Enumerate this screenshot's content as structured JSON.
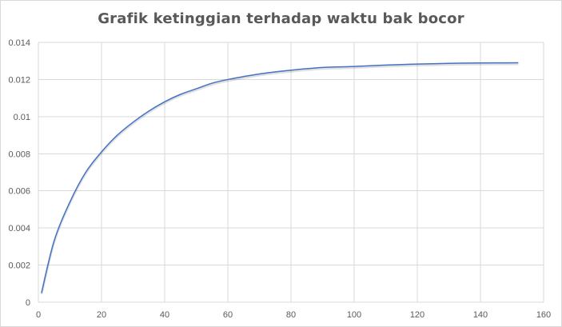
{
  "chart_data": {
    "type": "line",
    "title": "Grafik ketinggian  terhadap  waktu bak bocor",
    "xlabel": "",
    "ylabel": "",
    "xlim": [
      0,
      160
    ],
    "ylim": [
      0,
      0.014
    ],
    "x_ticks": [
      0,
      20,
      40,
      60,
      80,
      100,
      120,
      140,
      160
    ],
    "y_ticks": [
      0,
      0.002,
      0.004,
      0.006,
      0.008,
      0.01,
      0.012,
      0.014
    ],
    "x_tick_labels": [
      "0",
      "20",
      "40",
      "60",
      "80",
      "100",
      "120",
      "140",
      "160"
    ],
    "y_tick_labels": [
      "0",
      "0.002",
      "0.004",
      "0.006",
      "0.008",
      "0.01",
      "0.012",
      "0.014"
    ],
    "grid": true,
    "legend": "none",
    "series": [
      {
        "color": "#4472c4",
        "x": [
          1,
          5,
          10,
          15,
          20,
          25,
          30,
          35,
          40,
          45,
          50,
          55,
          60,
          70,
          80,
          90,
          100,
          110,
          120,
          130,
          140,
          152
        ],
        "y": [
          0.0005,
          0.0033,
          0.0054,
          0.007,
          0.0081,
          0.009,
          0.0097,
          0.0103,
          0.0108,
          0.0112,
          0.0115,
          0.0118,
          0.012,
          0.0123,
          0.0125,
          0.01265,
          0.0127,
          0.01278,
          0.01283,
          0.01287,
          0.01289,
          0.0129
        ]
      }
    ]
  }
}
